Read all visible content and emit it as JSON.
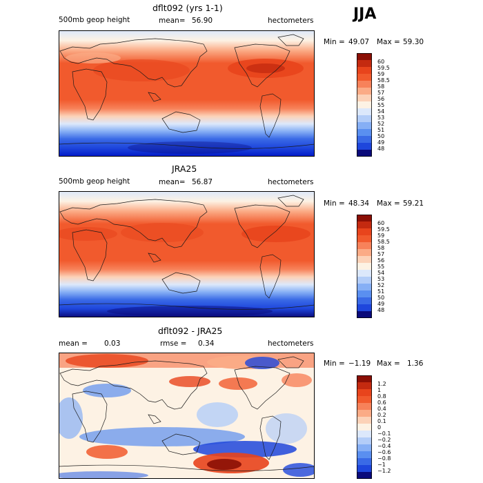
{
  "season": "JJA",
  "palette": {
    "land_outline": "#1a1a1a",
    "border": "#000000",
    "levels": [
      "#0a0a7a",
      "#0019c8",
      "#1e46dc",
      "#3a6ae6",
      "#5a8ff0",
      "#86aff5",
      "#b3cdf8",
      "#dce8fb",
      "#fdf2e4",
      "#fcd2b8",
      "#fbab86",
      "#f7825a",
      "#f15a2d",
      "#e8441c",
      "#c42a10",
      "#8b0f05"
    ]
  },
  "panels": [
    {
      "title": "dflt092 (yrs 1-1)",
      "field": "500mb geop height",
      "mean_label": "mean=",
      "mean_value": "56.90",
      "units": "hectometers",
      "min_label": "Min =",
      "min_value": "49.07",
      "max_label": "Max =",
      "max_value": "59.30",
      "colorbar_labels": [
        "60",
        "59.5",
        "59",
        "58.5",
        "58",
        "57",
        "56",
        "55",
        "54",
        "53",
        "52",
        "51",
        "50",
        "49",
        "48"
      ]
    },
    {
      "title": "JRA25",
      "field": "500mb geop height",
      "mean_label": "mean=",
      "mean_value": "56.87",
      "units": "hectometers",
      "min_label": "Min =",
      "min_value": "48.34",
      "max_label": "Max =",
      "max_value": "59.21",
      "colorbar_labels": [
        "60",
        "59.5",
        "59",
        "58.5",
        "58",
        "57",
        "56",
        "55",
        "54",
        "53",
        "52",
        "51",
        "50",
        "49",
        "48"
      ]
    },
    {
      "title": "dflt092 - JRA25",
      "mean_label": "mean =",
      "mean_value": "0.03",
      "rmse_label": "rmse =",
      "rmse_value": "0.34",
      "units": "hectometers",
      "min_label": "Min =",
      "min_value": "−1.19",
      "max_label": "Max =",
      "max_value": "1.36",
      "colorbar_labels": [
        "1.2",
        "1",
        "0.8",
        "0.6",
        "0.4",
        "0.2",
        "0.1",
        "0",
        "−0.1",
        "−0.2",
        "−0.4",
        "−0.6",
        "−0.8",
        "−1",
        "−1.2"
      ]
    }
  ]
}
